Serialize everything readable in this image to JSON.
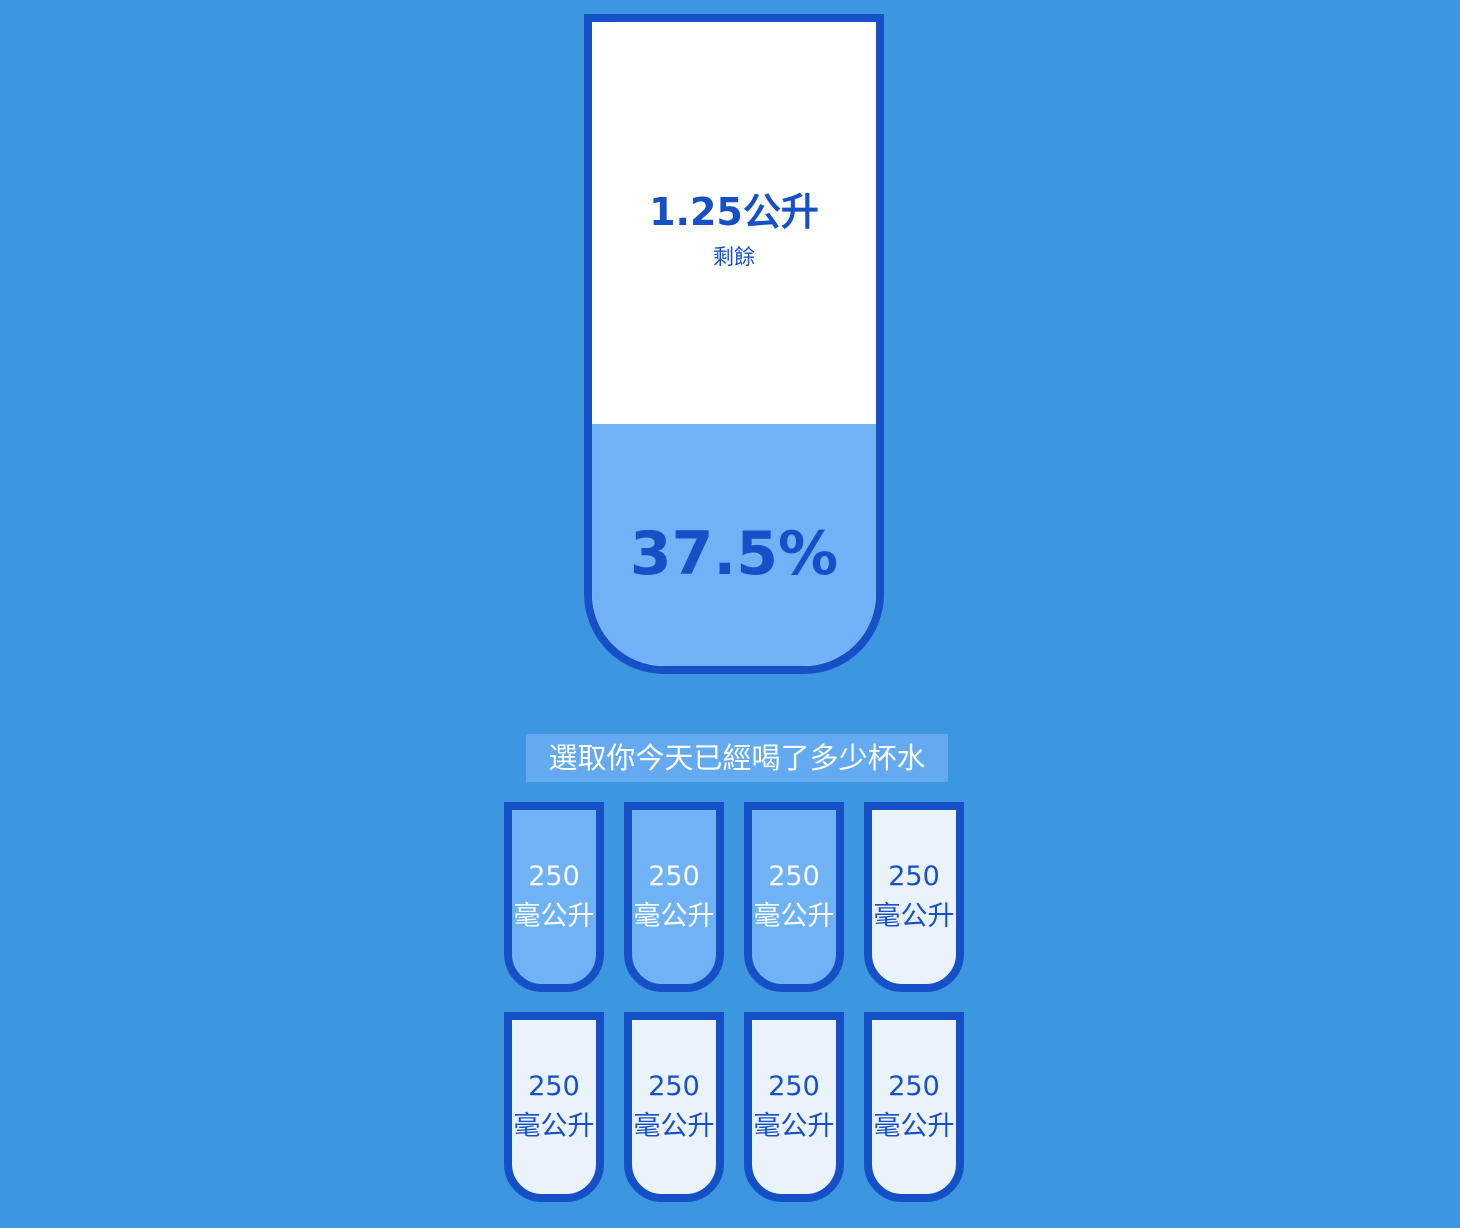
{
  "big_cup": {
    "remained_amount": "1.25公升",
    "remained_caption": "剩餘",
    "percentage": "37.5%",
    "fill_fraction": 0.375
  },
  "prompt": "選取你今天已經喝了多少杯水",
  "cups": [
    {
      "label": "250 毫公升",
      "full": true
    },
    {
      "label": "250 毫公升",
      "full": true
    },
    {
      "label": "250 毫公升",
      "full": true
    },
    {
      "label": "250 毫公升",
      "full": false
    },
    {
      "label": "250 毫公升",
      "full": false
    },
    {
      "label": "250 毫公升",
      "full": false
    },
    {
      "label": "250 毫公升",
      "full": false
    },
    {
      "label": "250 毫公升",
      "full": false
    }
  ],
  "colors": {
    "background": "#3c96e0",
    "border": "#1650c6",
    "water": "#6fb3f6",
    "empty_cup": "#eaf2fc"
  }
}
